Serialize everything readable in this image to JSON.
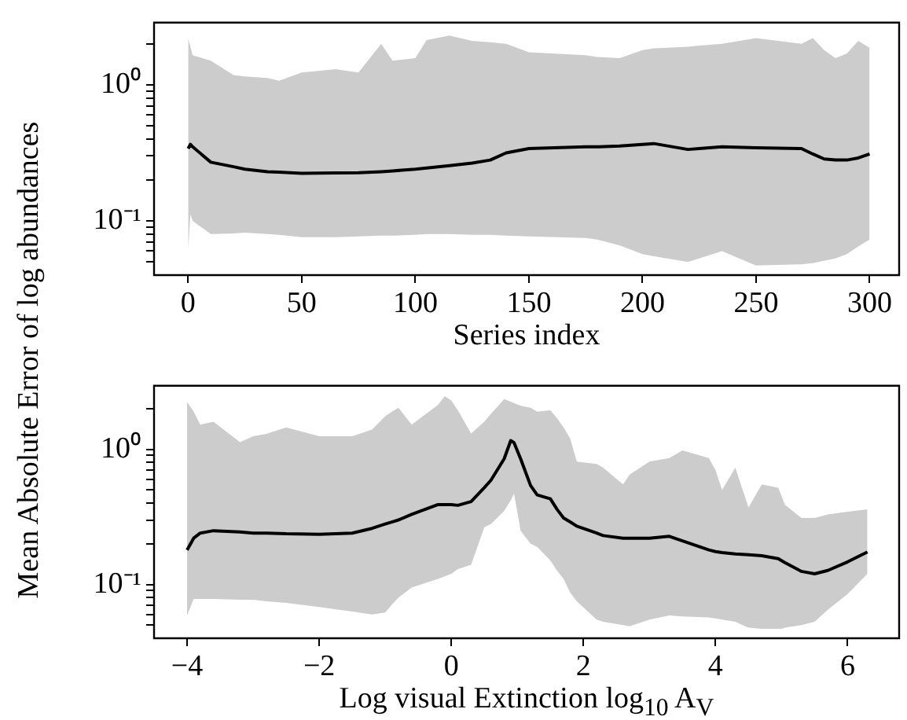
{
  "chart_data": [
    {
      "type": "line",
      "xlabel": "Series index",
      "ylabel": "Mean Absolute Error of log abundances",
      "log": "y",
      "grid": false,
      "legend": false,
      "marker": "none",
      "line_style": "solid",
      "xlim": [
        -15,
        313
      ],
      "xticks": [
        0,
        50,
        100,
        150,
        200,
        250,
        300
      ],
      "ylim": [
        0.04,
        2.86
      ],
      "yticks": [
        {
          "value": 0.05,
          "label": null
        },
        {
          "value": 0.06,
          "label": null
        },
        {
          "value": 0.07,
          "label": null
        },
        {
          "value": 0.08,
          "label": null
        },
        {
          "value": 0.09,
          "label": null
        },
        {
          "value": 0.1,
          "label": "10⁻¹"
        },
        {
          "value": 0.2,
          "label": null
        },
        {
          "value": 0.3,
          "label": null
        },
        {
          "value": 0.4,
          "label": null
        },
        {
          "value": 0.5,
          "label": null
        },
        {
          "value": 0.6,
          "label": null
        },
        {
          "value": 0.7,
          "label": null
        },
        {
          "value": 0.8,
          "label": null
        },
        {
          "value": 0.9,
          "label": null
        },
        {
          "value": 1,
          "label": "10⁰"
        },
        {
          "value": 2,
          "label": null
        }
      ],
      "series": [
        {
          "color": "#000000",
          "x": [
            0,
            1,
            2,
            10,
            20,
            25,
            35,
            40,
            50,
            65,
            75,
            85,
            90,
            100,
            105,
            115,
            125,
            133,
            140,
            150,
            175,
            180,
            190,
            200,
            205,
            220,
            225,
            235,
            250,
            270,
            275,
            280,
            285,
            290,
            295,
            300
          ],
          "values": [
            0.34,
            0.365,
            0.35,
            0.27,
            0.25,
            0.24,
            0.23,
            0.228,
            0.224,
            0.225,
            0.226,
            0.23,
            0.233,
            0.24,
            0.245,
            0.255,
            0.266,
            0.28,
            0.316,
            0.34,
            0.35,
            0.35,
            0.355,
            0.365,
            0.37,
            0.335,
            0.34,
            0.35,
            0.345,
            0.34,
            0.31,
            0.285,
            0.28,
            0.28,
            0.29,
            0.31
          ],
          "lower": [
            0.06,
            0.112,
            0.1,
            0.08,
            0.081,
            0.082,
            0.08,
            0.079,
            0.076,
            0.076,
            0.077,
            0.078,
            0.078,
            0.079,
            0.08,
            0.08,
            0.079,
            0.079,
            0.078,
            0.077,
            0.075,
            0.073,
            0.066,
            0.057,
            0.055,
            0.05,
            0.053,
            0.06,
            0.047,
            0.048,
            0.049,
            0.051,
            0.053,
            0.057,
            0.065,
            0.073
          ],
          "upper": [
            2.2,
            1.9,
            1.65,
            1.5,
            1.18,
            1.15,
            1.12,
            1.07,
            1.23,
            1.3,
            1.23,
            2.0,
            1.5,
            1.57,
            2.13,
            2.3,
            2.1,
            2.05,
            2.0,
            1.73,
            1.65,
            1.6,
            1.57,
            1.8,
            1.85,
            1.9,
            1.94,
            2.0,
            2.2,
            2.0,
            2.2,
            1.8,
            1.57,
            1.7,
            2.1,
            1.87
          ]
        }
      ]
    },
    {
      "type": "line",
      "xlabel": "Log visual Extinction log$_{10}$ A$_{V}$",
      "log": "y",
      "grid": false,
      "legend": false,
      "marker": "none",
      "line_style": "solid",
      "xlim": [
        -4.5,
        6.78
      ],
      "xticks": [
        {
          "value": -4,
          "label": "−4"
        },
        {
          "value": -2,
          "label": "−2"
        },
        0,
        2,
        4,
        6
      ],
      "ylim": [
        0.04,
        2.95
      ],
      "yticks": [
        {
          "value": 0.05,
          "label": null
        },
        {
          "value": 0.06,
          "label": null
        },
        {
          "value": 0.07,
          "label": null
        },
        {
          "value": 0.08,
          "label": null
        },
        {
          "value": 0.09,
          "label": null
        },
        {
          "value": 0.1,
          "label": "10⁻¹"
        },
        {
          "value": 0.2,
          "label": null
        },
        {
          "value": 0.3,
          "label": null
        },
        {
          "value": 0.4,
          "label": null
        },
        {
          "value": 0.5,
          "label": null
        },
        {
          "value": 0.6,
          "label": null
        },
        {
          "value": 0.7,
          "label": null
        },
        {
          "value": 0.8,
          "label": null
        },
        {
          "value": 0.9,
          "label": null
        },
        {
          "value": 1,
          "label": "10⁰"
        },
        {
          "value": 2,
          "label": null
        }
      ],
      "series": [
        {
          "color": "#000000",
          "x": [
            -4,
            -3.9,
            -3.8,
            -3.6,
            -3.2,
            -3,
            -2.8,
            -2.5,
            -2,
            -1.5,
            -1.2,
            -1,
            -0.9,
            -0.8,
            -0.6,
            -0.2,
            -0.1,
            0,
            0.1,
            0.3,
            0.5,
            0.6,
            0.8,
            0.9,
            0.95,
            1.05,
            1.2,
            1.3,
            1.5,
            1.6,
            1.7,
            1.8,
            1.9,
            2.2,
            2.3,
            2.6,
            2.7,
            3,
            3.3,
            3.5,
            3.9,
            4,
            4.1,
            4.3,
            4.5,
            4.7,
            4.95,
            5,
            5.05,
            5.3,
            5.5,
            5.7,
            6,
            6.3
          ],
          "values": [
            0.18,
            0.22,
            0.24,
            0.25,
            0.245,
            0.24,
            0.24,
            0.237,
            0.235,
            0.24,
            0.26,
            0.28,
            0.29,
            0.3,
            0.33,
            0.39,
            0.39,
            0.39,
            0.385,
            0.41,
            0.52,
            0.59,
            0.85,
            1.16,
            1.12,
            0.85,
            0.54,
            0.46,
            0.43,
            0.36,
            0.31,
            0.29,
            0.27,
            0.24,
            0.23,
            0.22,
            0.22,
            0.22,
            0.227,
            0.21,
            0.18,
            0.175,
            0.172,
            0.168,
            0.166,
            0.163,
            0.155,
            0.15,
            0.145,
            0.125,
            0.12,
            0.127,
            0.147,
            0.174
          ],
          "lower": [
            0.059,
            0.078,
            0.078,
            0.078,
            0.077,
            0.077,
            0.075,
            0.073,
            0.068,
            0.063,
            0.06,
            0.062,
            0.071,
            0.08,
            0.095,
            0.11,
            0.115,
            0.12,
            0.13,
            0.14,
            0.265,
            0.28,
            0.35,
            0.42,
            0.47,
            0.25,
            0.2,
            0.19,
            0.15,
            0.127,
            0.11,
            0.087,
            0.075,
            0.055,
            0.053,
            0.05,
            0.049,
            0.055,
            0.059,
            0.058,
            0.057,
            0.056,
            0.055,
            0.053,
            0.048,
            0.047,
            0.047,
            0.047,
            0.048,
            0.05,
            0.053,
            0.065,
            0.085,
            0.12
          ],
          "upper": [
            2.24,
            1.9,
            1.52,
            1.6,
            1.13,
            1.25,
            1.3,
            1.45,
            1.25,
            1.25,
            1.4,
            1.76,
            1.9,
            2.03,
            1.52,
            2.13,
            2.47,
            2.3,
            1.94,
            1.31,
            1.6,
            1.83,
            2.35,
            2.25,
            2.2,
            2.1,
            2.03,
            1.9,
            1.94,
            1.7,
            1.45,
            1.2,
            0.81,
            0.78,
            0.73,
            0.55,
            0.65,
            0.81,
            0.86,
            0.98,
            0.86,
            0.7,
            0.5,
            0.73,
            0.37,
            0.55,
            0.52,
            0.45,
            0.39,
            0.31,
            0.31,
            0.33,
            0.345,
            0.36
          ]
        }
      ]
    }
  ]
}
